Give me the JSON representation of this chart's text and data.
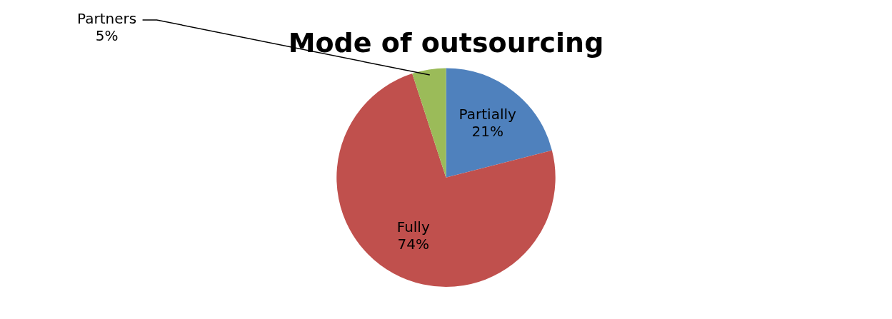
{
  "chart_data": {
    "type": "pie",
    "title": "Mode of outsourcing",
    "categories": [
      "Partially",
      "Fully",
      "Partners"
    ],
    "values": [
      21,
      74,
      5
    ],
    "value_labels": [
      "21%",
      "74%",
      "5%"
    ],
    "colors": [
      "#4f81bd",
      "#c0504d",
      "#9bbb59"
    ],
    "legend": false
  }
}
